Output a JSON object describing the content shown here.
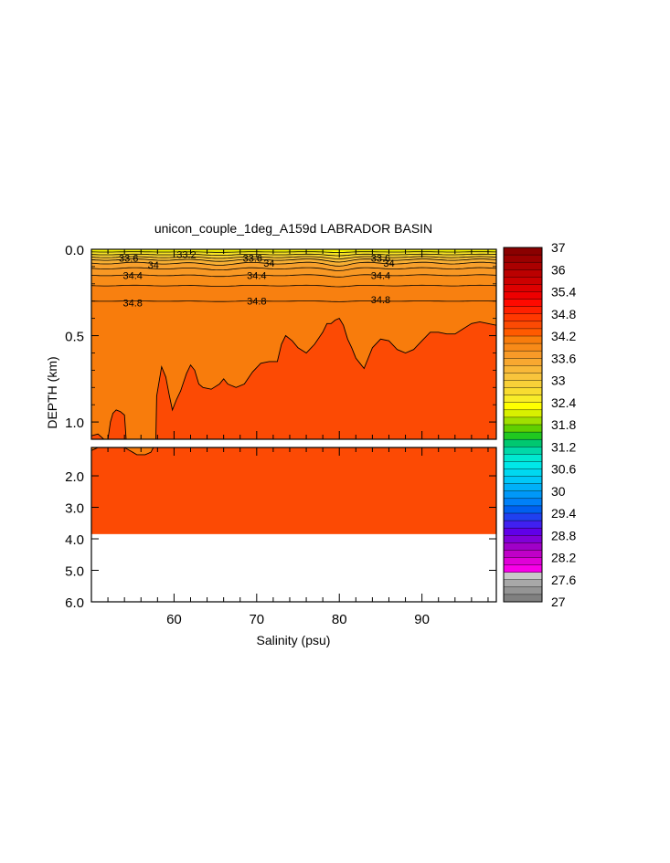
{
  "chart_data": {
    "type": "heatmap",
    "title": "unicon_couple_1deg_A159d LABRADOR BASIN",
    "xlabel": "Salinity (psu)",
    "ylabel": "DEPTH (km)",
    "xlim": [
      50,
      99
    ],
    "x_ticks": [
      "60",
      "70",
      "80",
      "90"
    ],
    "upper_panel": {
      "ylim": [
        0.0,
        1.1
      ],
      "y_ticks": [
        "0.0",
        "0.5",
        "1.0"
      ]
    },
    "lower_panel": {
      "ylim": [
        1.1,
        6.0
      ],
      "y_ticks": [
        "2.0",
        "3.0",
        "4.0",
        "5.0",
        "6.0"
      ]
    },
    "contour_labels": [
      {
        "text": "33.6",
        "x": 54.5,
        "y": 0.05
      },
      {
        "text": "33.2",
        "x": 61.5,
        "y": 0.03
      },
      {
        "text": "34",
        "x": 57.5,
        "y": 0.09
      },
      {
        "text": "34.4",
        "x": 55,
        "y": 0.15
      },
      {
        "text": "34.8",
        "x": 55,
        "y": 0.31
      },
      {
        "text": "33.6",
        "x": 69.5,
        "y": 0.05
      },
      {
        "text": "34",
        "x": 71.5,
        "y": 0.08
      },
      {
        "text": "34.4",
        "x": 70,
        "y": 0.15
      },
      {
        "text": "34.8",
        "x": 70,
        "y": 0.3
      },
      {
        "text": "33.6",
        "x": 85,
        "y": 0.05
      },
      {
        "text": "34",
        "x": 86,
        "y": 0.08
      },
      {
        "text": "34.4",
        "x": 85,
        "y": 0.15
      },
      {
        "text": "34.8",
        "x": 85,
        "y": 0.29
      }
    ],
    "surface_contours": [
      {
        "level": 33.2,
        "base": 0.015,
        "dip": 0.005
      },
      {
        "level": 33.4,
        "base": 0.03,
        "dip": 0.01
      },
      {
        "level": 33.6,
        "base": 0.045,
        "dip": 0.015
      },
      {
        "level": 33.8,
        "base": 0.06,
        "dip": 0.02
      },
      {
        "level": 34.0,
        "base": 0.08,
        "dip": 0.025
      },
      {
        "level": 34.2,
        "base": 0.11,
        "dip": 0.02
      },
      {
        "level": 34.4,
        "base": 0.15,
        "dip": 0.015
      },
      {
        "level": 34.6,
        "base": 0.21,
        "dip": 0.01
      },
      {
        "level": 34.8,
        "base": 0.3,
        "dip": 0.005
      }
    ],
    "boundary_348_upper": [
      [
        50,
        1.1
      ],
      [
        50,
        1.08
      ],
      [
        50.8,
        1.07
      ],
      [
        51.5,
        1.1
      ],
      [
        52,
        1.1
      ],
      [
        52.3,
        1.0
      ],
      [
        52.6,
        0.95
      ],
      [
        53,
        0.93
      ],
      [
        53.5,
        0.94
      ],
      [
        54,
        0.96
      ],
      [
        54.2,
        1.1
      ],
      [
        57.8,
        1.1
      ],
      [
        57.9,
        0.85
      ],
      [
        58.5,
        0.68
      ],
      [
        59,
        0.74
      ],
      [
        59.4,
        0.84
      ],
      [
        59.8,
        0.93
      ],
      [
        60.3,
        0.87
      ],
      [
        60.8,
        0.82
      ],
      [
        61.5,
        0.72
      ],
      [
        62,
        0.67
      ],
      [
        62.5,
        0.7
      ],
      [
        63,
        0.78
      ],
      [
        63.5,
        0.8
      ],
      [
        64.5,
        0.81
      ],
      [
        65.5,
        0.78
      ],
      [
        66,
        0.75
      ],
      [
        66.5,
        0.78
      ],
      [
        67.5,
        0.8
      ],
      [
        68.5,
        0.78
      ],
      [
        69.5,
        0.71
      ],
      [
        70.5,
        0.66
      ],
      [
        71.5,
        0.65
      ],
      [
        72.5,
        0.65
      ],
      [
        73,
        0.55
      ],
      [
        73.5,
        0.5
      ],
      [
        74.3,
        0.53
      ],
      [
        75,
        0.57
      ],
      [
        76,
        0.6
      ],
      [
        77,
        0.55
      ],
      [
        78,
        0.48
      ],
      [
        78.5,
        0.43
      ],
      [
        79,
        0.43
      ],
      [
        79.5,
        0.41
      ],
      [
        80,
        0.4
      ],
      [
        80.5,
        0.44
      ],
      [
        81,
        0.52
      ],
      [
        81.5,
        0.57
      ],
      [
        82,
        0.63
      ],
      [
        82.5,
        0.66
      ],
      [
        83,
        0.69
      ],
      [
        84,
        0.57
      ],
      [
        85,
        0.52
      ],
      [
        86,
        0.53
      ],
      [
        87,
        0.58
      ],
      [
        88,
        0.6
      ],
      [
        89,
        0.58
      ],
      [
        90,
        0.53
      ],
      [
        91,
        0.48
      ],
      [
        92,
        0.48
      ],
      [
        93,
        0.49
      ],
      [
        94,
        0.49
      ],
      [
        95,
        0.46
      ],
      [
        96,
        0.43
      ],
      [
        97,
        0.42
      ],
      [
        98,
        0.43
      ],
      [
        99,
        0.44
      ]
    ],
    "boundary_348_lower": [
      [
        50,
        1.2
      ],
      [
        50.4,
        1.15
      ],
      [
        50.8,
        1.1
      ],
      [
        54,
        1.1
      ],
      [
        54.4,
        1.16
      ],
      [
        55,
        1.25
      ],
      [
        55.5,
        1.33
      ],
      [
        56.5,
        1.33
      ],
      [
        57.2,
        1.25
      ],
      [
        57.5,
        1.1
      ]
    ],
    "fill_bottom_depth": 3.85,
    "colorbar": {
      "labels": [
        "37",
        "36",
        "35.4",
        "34.8",
        "34.2",
        "33.6",
        "33",
        "32.4",
        "31.8",
        "31.2",
        "30.6",
        "30",
        "29.4",
        "28.8",
        "28.2",
        "27.6",
        "27"
      ],
      "colors": [
        "#8a0000",
        "#9a0000",
        "#aa0000",
        "#bb0000",
        "#cc0000",
        "#dd0000",
        "#ee0000",
        "#ff0a00",
        "#ff2000",
        "#ff3800",
        "#fc4a04",
        "#ff5a00",
        "#f87c0c",
        "#f88a18",
        "#f89a28",
        "#f8a830",
        "#f8b838",
        "#f8c43c",
        "#f8d038",
        "#f8dc30",
        "#f8ec28",
        "#ffff00",
        "#d8f000",
        "#a0e000",
        "#60d000",
        "#20c820",
        "#00c870",
        "#00d8a8",
        "#00e8d0",
        "#00e8e8",
        "#00d8f0",
        "#00c8f8",
        "#00b0f8",
        "#0098f8",
        "#0080f8",
        "#0060f0",
        "#2040f0",
        "#4020f0",
        "#6000e8",
        "#8000d8",
        "#a000c8",
        "#c000c8",
        "#e000d8",
        "#f800e8",
        "#c8c8c8",
        "#a8a8a8",
        "#949494",
        "#808080"
      ]
    },
    "fill_colors": {
      "lt_33_2": "#ffff00",
      "33_2_to_33_4": "#f8e428",
      "33_4_to_33_6": "#f8d234",
      "33_6_to_33_8": "#f8c03c",
      "33_8_to_34_0": "#f8b034",
      "34_0_to_34_2": "#f8a02c",
      "34_2_to_34_4": "#f89824",
      "34_4_to_34_6": "#f88c18",
      "34_6_to_34_8": "#f88010",
      "main_orange": "#f87c0c",
      "deep_red": "#fc4a04"
    }
  }
}
